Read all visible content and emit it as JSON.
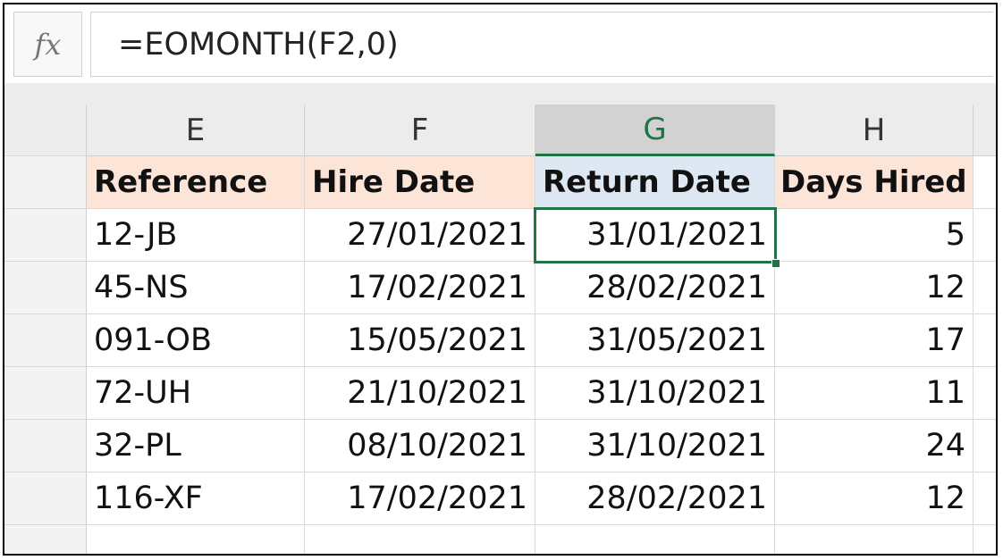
{
  "formula_bar": {
    "fx_label": "fx",
    "formula": "=EOMONTH(F2,0)"
  },
  "columns": [
    {
      "letter": "E",
      "active": false
    },
    {
      "letter": "F",
      "active": false
    },
    {
      "letter": "G",
      "active": true
    },
    {
      "letter": "H",
      "active": false
    }
  ],
  "header_row": [
    "Reference",
    "Hire Date",
    "Return Date",
    "Days Hired"
  ],
  "rows": [
    {
      "reference": "12-JB",
      "hire_date": "27/01/2021",
      "return_date": "31/01/2021",
      "days_hired": "5"
    },
    {
      "reference": "45-NS",
      "hire_date": "17/02/2021",
      "return_date": "28/02/2021",
      "days_hired": "12"
    },
    {
      "reference": "091-OB",
      "hire_date": "15/05/2021",
      "return_date": "31/05/2021",
      "days_hired": "17"
    },
    {
      "reference": "72-UH",
      "hire_date": "21/10/2021",
      "return_date": "31/10/2021",
      "days_hired": "11"
    },
    {
      "reference": "32-PL",
      "hire_date": "08/10/2021",
      "return_date": "31/10/2021",
      "days_hired": "24"
    },
    {
      "reference": "116-XF",
      "hire_date": "17/02/2021",
      "return_date": "28/02/2021",
      "days_hired": "12"
    }
  ],
  "colors": {
    "header_fill": "#fce4d6",
    "selected_header_fill": "#dde8f2",
    "selection_border": "#217346"
  }
}
